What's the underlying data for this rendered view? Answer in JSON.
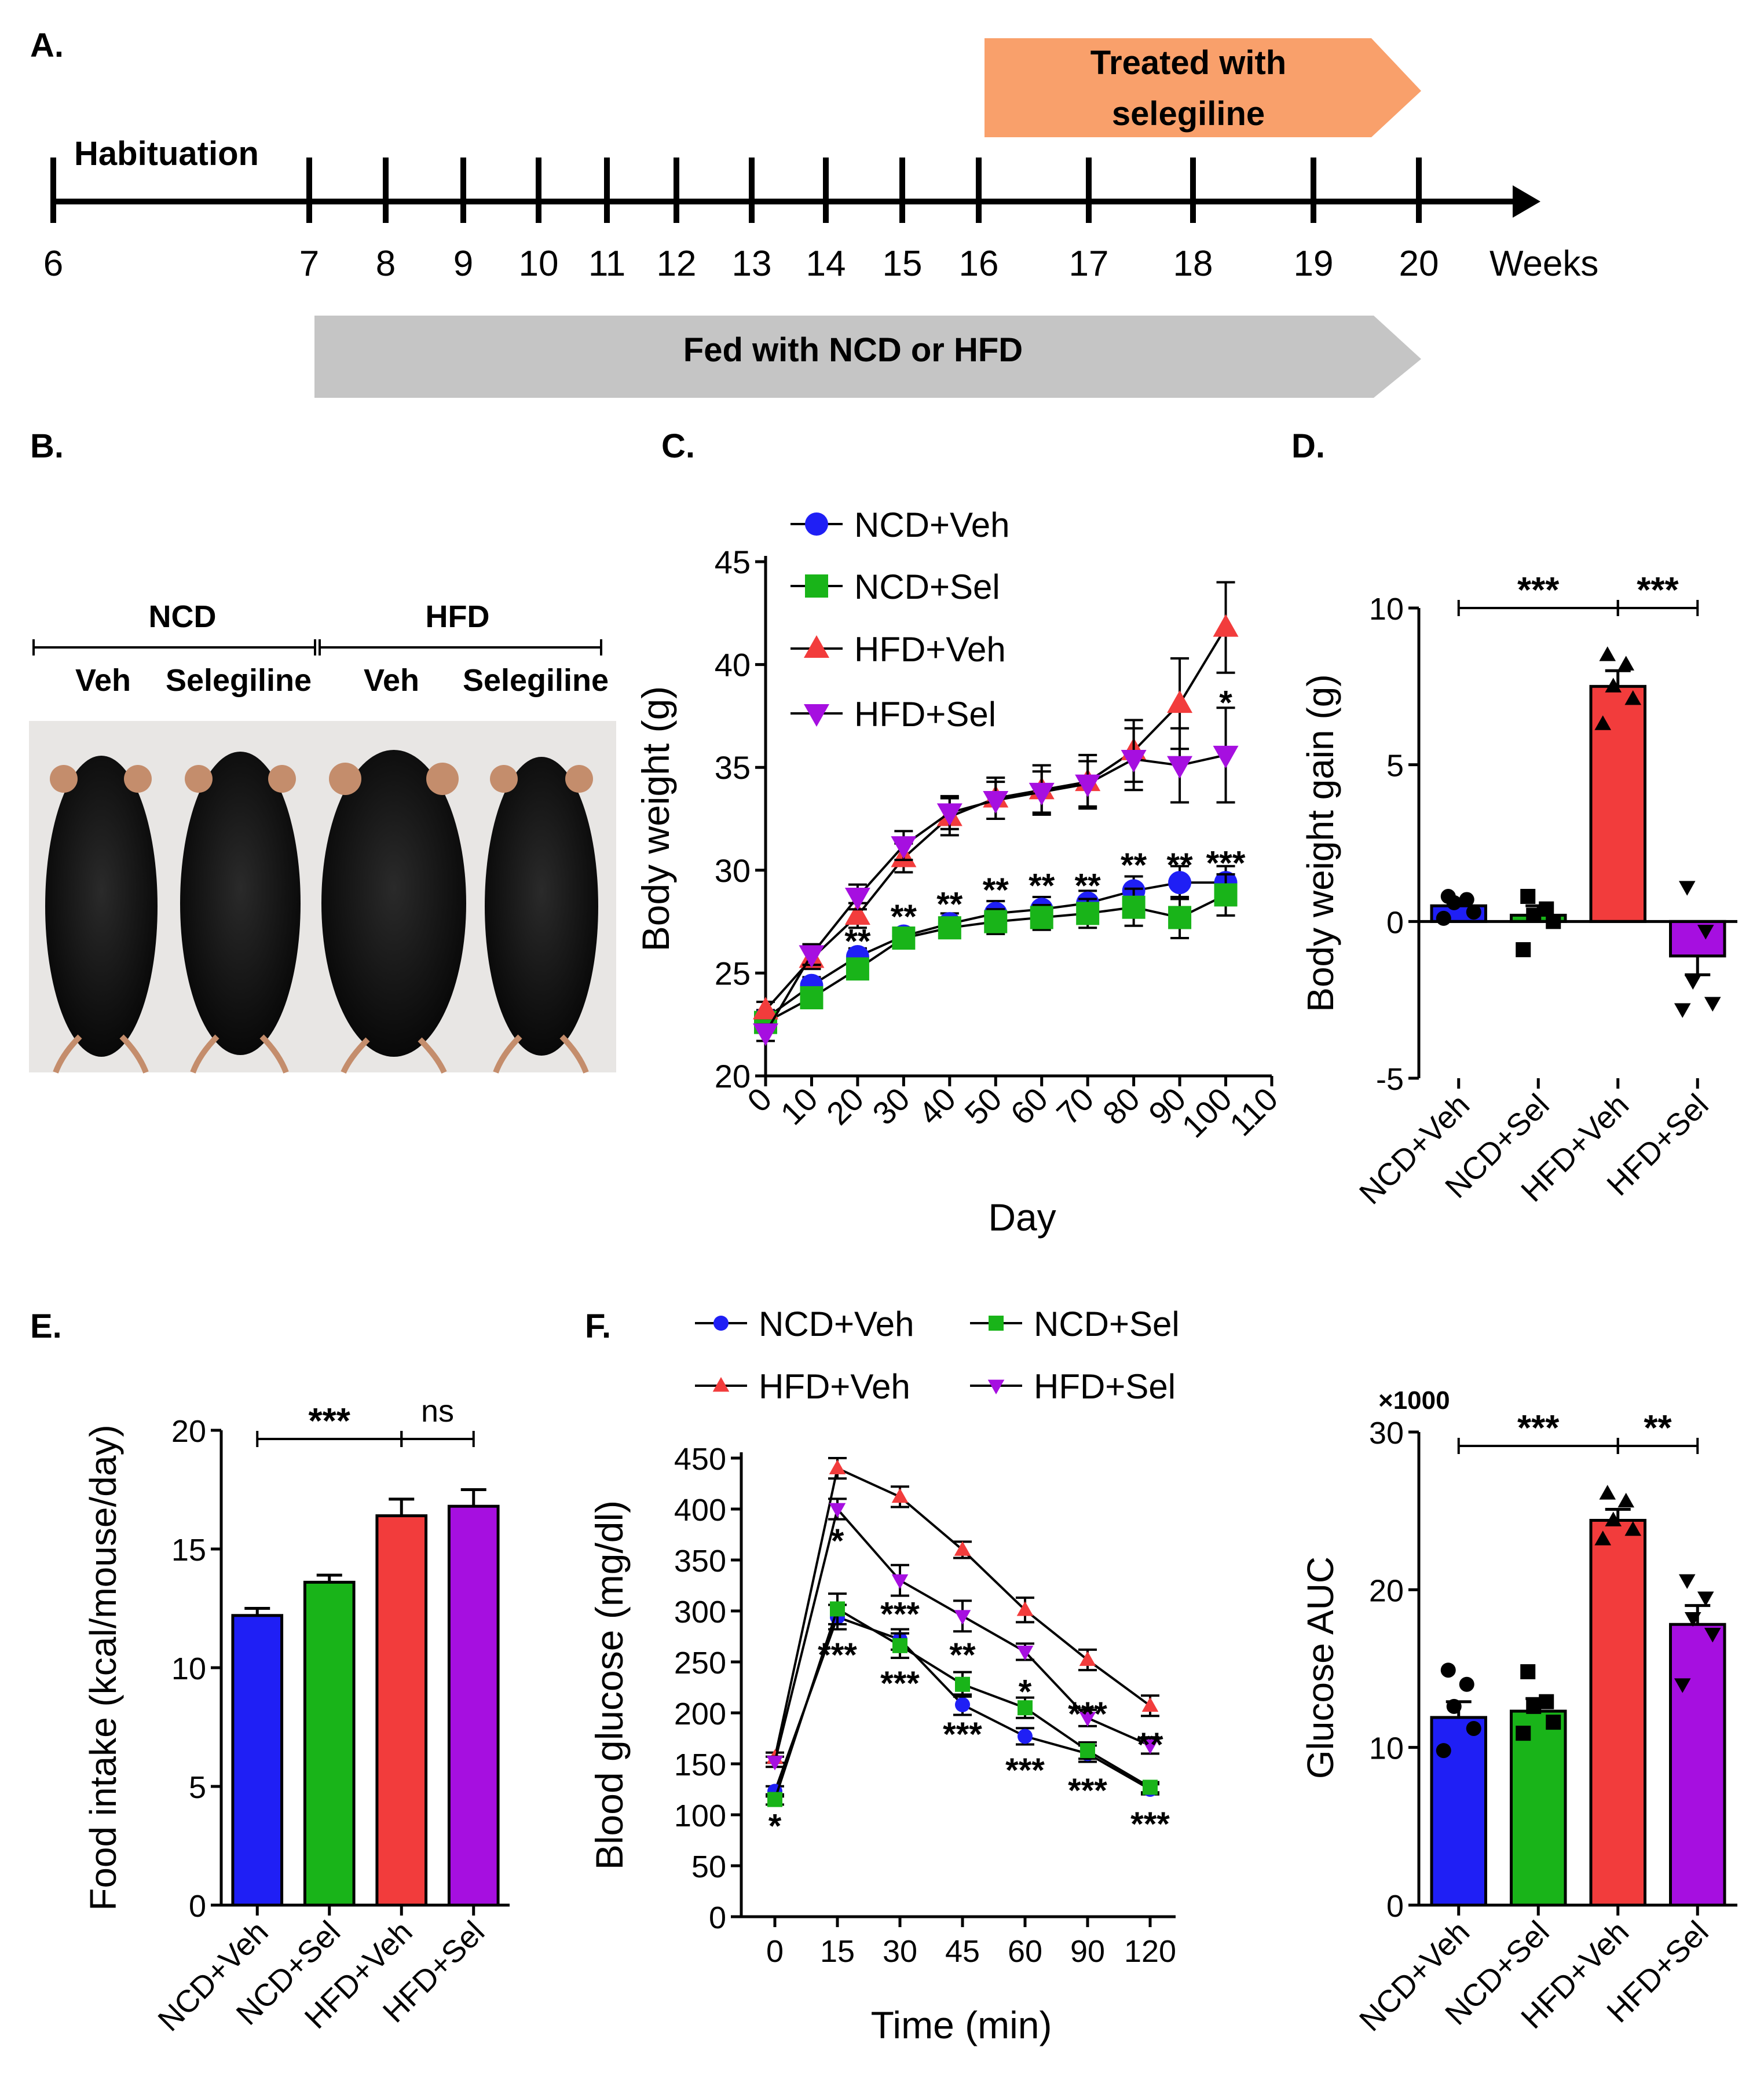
{
  "panels": {
    "A": "A.",
    "B": "B.",
    "C": "C.",
    "D": "D.",
    "E": "E.",
    "F": "F."
  },
  "colors": {
    "blue": "#1f1ff5",
    "green": "#19b419",
    "red": "#f23c3c",
    "purple": "#a60fe0",
    "orange": "#f9a06b",
    "gray": "#c5c5c5",
    "black": "#000000"
  },
  "timeline": {
    "habituation": "Habituation",
    "treated_line1": "Treated with",
    "treated_line2": "selegiline",
    "fed": "Fed with NCD or HFD",
    "ticks": [
      "6",
      "7",
      "8",
      "9",
      "10",
      "11",
      "12",
      "13",
      "14",
      "15",
      "16",
      "17",
      "18",
      "19",
      "20"
    ],
    "unit": "Weeks"
  },
  "photo": {
    "group1": "NCD",
    "group2": "HFD",
    "labels": [
      "Veh",
      "Selegiline",
      "Veh",
      "Selegiline"
    ],
    "icon": "mouse-photo-icon"
  },
  "chart_data": [
    {
      "panel": "C",
      "type": "line",
      "xlabel": "Day",
      "ylabel": "Body weight (g)",
      "xlim": [
        0,
        110
      ],
      "ylim": [
        20,
        45
      ],
      "xticks": [
        "0",
        "10",
        "20",
        "30",
        "40",
        "50",
        "60",
        "70",
        "80",
        "90",
        "100",
        "110"
      ],
      "yticks": [
        "20",
        "25",
        "30",
        "35",
        "40",
        "45"
      ],
      "x": [
        0,
        10,
        20,
        30,
        40,
        50,
        60,
        70,
        80,
        90,
        100
      ],
      "series": [
        {
          "name": "NCD+Veh",
          "color": "#1f1ff5",
          "marker": "circle",
          "values": [
            22.8,
            24.4,
            25.8,
            26.8,
            27.4,
            27.9,
            28.1,
            28.4,
            29.0,
            29.4,
            29.4
          ],
          "err": [
            0.4,
            0.4,
            0.4,
            0.4,
            0.5,
            0.6,
            0.6,
            0.6,
            0.7,
            0.8,
            0.8
          ]
        },
        {
          "name": "NCD+Sel",
          "color": "#19b419",
          "marker": "square",
          "values": [
            22.6,
            23.8,
            25.2,
            26.7,
            27.2,
            27.5,
            27.7,
            27.9,
            28.2,
            27.7,
            28.8
          ],
          "err": [
            0.4,
            0.4,
            0.4,
            0.4,
            0.5,
            0.6,
            0.6,
            0.7,
            0.9,
            1.0,
            1.0
          ]
        },
        {
          "name": "HFD+Veh",
          "color": "#f23c3c",
          "marker": "triangle",
          "values": [
            23.2,
            25.7,
            27.8,
            30.6,
            32.6,
            33.5,
            33.9,
            34.3,
            35.8,
            38.1,
            41.8
          ],
          "err": [
            0.4,
            0.5,
            0.6,
            0.7,
            0.9,
            1.0,
            1.2,
            1.3,
            1.5,
            2.2,
            2.2
          ]
        },
        {
          "name": "HFD+Sel",
          "color": "#a60fe0",
          "marker": "triangle-down",
          "values": [
            22.1,
            25.9,
            28.7,
            31.2,
            32.8,
            33.4,
            33.8,
            34.2,
            35.4,
            35.1,
            35.6
          ],
          "err": [
            0.4,
            0.5,
            0.6,
            0.7,
            0.8,
            0.9,
            1.0,
            1.1,
            1.5,
            1.8,
            2.3
          ]
        }
      ],
      "annotations": [
        {
          "x": 20,
          "y": 26.6,
          "text": "**"
        },
        {
          "x": 30,
          "y": 27.8,
          "text": "**"
        },
        {
          "x": 40,
          "y": 28.4,
          "text": "**"
        },
        {
          "x": 50,
          "y": 29.1,
          "text": "**"
        },
        {
          "x": 60,
          "y": 29.3,
          "text": "**"
        },
        {
          "x": 70,
          "y": 29.3,
          "text": "**"
        },
        {
          "x": 80,
          "y": 30.3,
          "text": "**"
        },
        {
          "x": 90,
          "y": 30.3,
          "text": "**"
        },
        {
          "x": 100,
          "y": 30.4,
          "text": "***"
        },
        {
          "x": 100,
          "y": 38.2,
          "text": "*"
        }
      ]
    },
    {
      "panel": "D",
      "type": "bar",
      "ylabel": "Body weight gain (g)",
      "ylim": [
        -5,
        10
      ],
      "yticks": [
        "-5",
        "0",
        "5",
        "10"
      ],
      "categories": [
        "NCD+Veh",
        "NCD+Sel",
        "HFD+Veh",
        "HFD+Sel"
      ],
      "values": [
        0.5,
        0.2,
        7.5,
        -1.1
      ],
      "err": [
        0.2,
        0.3,
        0.5,
        0.6
      ],
      "colors": [
        "#1f1ff5",
        "#19b419",
        "#f23c3c",
        "#a60fe0"
      ],
      "markers": [
        "circle",
        "square",
        "triangle",
        "triangle-down"
      ],
      "points": [
        [
          0.1,
          0.3,
          0.6,
          0.7,
          0.8
        ],
        [
          -0.9,
          0.0,
          0.2,
          0.4,
          0.8
        ],
        [
          6.3,
          7.1,
          7.5,
          8.2,
          8.5
        ],
        [
          -2.8,
          -2.6,
          -1.9,
          -0.3,
          1.1
        ]
      ],
      "brackets": [
        {
          "from": 0,
          "to": 2,
          "y": 10,
          "text": "***"
        },
        {
          "from": 2,
          "to": 3,
          "y": 10,
          "text": "***"
        }
      ]
    },
    {
      "panel": "E",
      "type": "bar",
      "ylabel": "Food intake (kcal/mouse/day)",
      "ylim": [
        0,
        20
      ],
      "yticks": [
        "0",
        "5",
        "10",
        "15",
        "20"
      ],
      "categories": [
        "NCD+Veh",
        "NCD+Sel",
        "HFD+Veh",
        "HFD+Sel"
      ],
      "values": [
        12.2,
        13.6,
        16.4,
        16.8
      ],
      "err": [
        0.3,
        0.3,
        0.7,
        0.7
      ],
      "colors": [
        "#1f1ff5",
        "#19b419",
        "#f23c3c",
        "#a60fe0"
      ],
      "brackets": [
        {
          "from": 0,
          "to": 2,
          "y": 19.5,
          "text": "***"
        },
        {
          "from": 2,
          "to": 3,
          "y": 19.5,
          "text": "ns"
        }
      ]
    },
    {
      "panel": "F",
      "type": "line",
      "xlabel": "Time (min)",
      "ylabel": "Blood glucose (mg/dl)",
      "ylim": [
        0,
        450
      ],
      "yticks": [
        "0",
        "50",
        "100",
        "150",
        "200",
        "250",
        "300",
        "350",
        "400",
        "450"
      ],
      "categories": [
        "0",
        "15",
        "30",
        "45",
        "60",
        "90",
        "120"
      ],
      "series": [
        {
          "name": "NCD+Veh",
          "color": "#1f1ff5",
          "marker": "circle",
          "values": [
            123,
            294,
            272,
            208,
            177,
            160,
            125
          ],
          "err": [
            5,
            12,
            10,
            10,
            8,
            8,
            5
          ]
        },
        {
          "name": "NCD+Sel",
          "color": "#19b419",
          "marker": "square",
          "values": [
            115,
            302,
            266,
            228,
            205,
            163,
            127
          ],
          "err": [
            5,
            15,
            12,
            12,
            10,
            8,
            5
          ]
        },
        {
          "name": "HFD+Veh",
          "color": "#f23c3c",
          "marker": "triangle",
          "values": [
            156,
            440,
            412,
            360,
            301,
            252,
            207
          ],
          "err": [
            5,
            10,
            10,
            8,
            12,
            10,
            10
          ]
        },
        {
          "name": "HFD+Sel",
          "color": "#a60fe0",
          "marker": "triangle-down",
          "values": [
            152,
            400,
            330,
            295,
            260,
            195,
            168
          ],
          "err": [
            5,
            10,
            15,
            15,
            8,
            8,
            8
          ]
        }
      ],
      "annotations": [
        {
          "i": 0,
          "v": 90,
          "text": "*"
        },
        {
          "i": 1,
          "v": 370,
          "text": "*"
        },
        {
          "i": 1,
          "v": 258,
          "text": "***"
        },
        {
          "i": 2,
          "v": 298,
          "text": "***"
        },
        {
          "i": 2,
          "v": 230,
          "text": "***"
        },
        {
          "i": 3,
          "v": 258,
          "text": "**"
        },
        {
          "i": 3,
          "v": 180,
          "text": "***"
        },
        {
          "i": 4,
          "v": 222,
          "text": "*"
        },
        {
          "i": 4,
          "v": 145,
          "text": "***"
        },
        {
          "i": 5,
          "v": 200,
          "text": "***"
        },
        {
          "i": 5,
          "v": 125,
          "text": "***"
        },
        {
          "i": 6,
          "v": 170,
          "text": "**"
        },
        {
          "i": 6,
          "v": 92,
          "text": "***"
        }
      ]
    },
    {
      "panel": "F-AUC",
      "type": "bar",
      "ylabel": "Glucose AUC",
      "yscale": "×1000",
      "ylim": [
        0,
        30
      ],
      "yticks": [
        "0",
        "10",
        "20",
        "30"
      ],
      "categories": [
        "NCD+Veh",
        "NCD+Sel",
        "HFD+Veh",
        "HFD+Sel"
      ],
      "values": [
        11.9,
        12.3,
        24.4,
        17.8
      ],
      "err": [
        1.0,
        0.8,
        0.7,
        1.2
      ],
      "colors": [
        "#1f1ff5",
        "#19b419",
        "#f23c3c",
        "#a60fe0"
      ],
      "markers": [
        "circle",
        "square",
        "triangle",
        "triangle-down"
      ],
      "points": [
        [
          9.8,
          11.2,
          12.6,
          14.0,
          14.9
        ],
        [
          10.9,
          11.6,
          12.6,
          12.9,
          14.8
        ],
        [
          23.2,
          23.8,
          24.4,
          25.6,
          26.1
        ],
        [
          14.0,
          17.2,
          18.2,
          19.5,
          20.6
        ]
      ],
      "brackets": [
        {
          "from": 0,
          "to": 2,
          "y": 29,
          "text": "***"
        },
        {
          "from": 2,
          "to": 3,
          "y": 29,
          "text": "**"
        }
      ]
    }
  ]
}
